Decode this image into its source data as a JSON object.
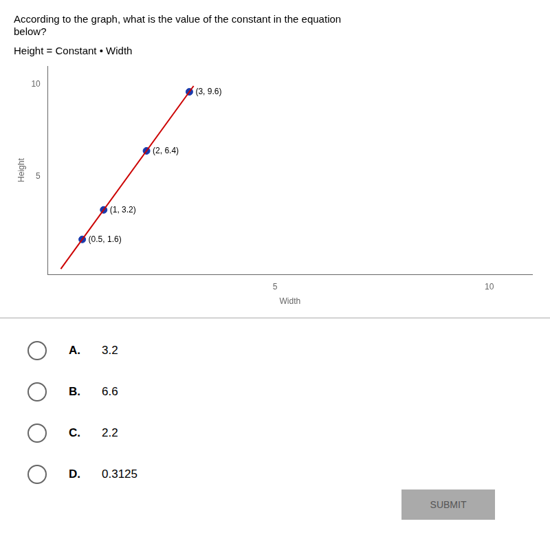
{
  "chart_data": {
    "type": "scatter",
    "title": "According to the graph, what is the value of the constant in the equation\nbelow?",
    "subtitle": "Height = Constant • Width",
    "x_label": "Width",
    "y_label": "Height",
    "xlim": [
      -0.3,
      11
    ],
    "ylim": [
      -0.3,
      11
    ],
    "xticks": [
      5,
      10
    ],
    "yticks": [
      5,
      10
    ],
    "grid": false,
    "series": [
      {
        "type": "line",
        "color": "#cc0000",
        "x": [
          0,
          3.1
        ],
        "values": [
          0,
          9.92
        ]
      },
      {
        "type": "scatter",
        "color": "#1a3aad",
        "x": [
          0.5,
          1,
          2,
          3
        ],
        "values": [
          1.6,
          3.2,
          6.4,
          9.6
        ],
        "data_labels": true,
        "value_labels": [
          "(0.5, 1.6)",
          "(1, 3.2)",
          "(2, 6.4)",
          "(3, 9.6)"
        ]
      }
    ],
    "choices": [
      {
        "letter": "A.",
        "value": "3.2"
      },
      {
        "letter": "B.",
        "value": "6.6"
      },
      {
        "letter": "C.",
        "value": "2.2"
      },
      {
        "letter": "D.",
        "value": "0.3125"
      }
    ],
    "button": "SUBMIT"
  }
}
